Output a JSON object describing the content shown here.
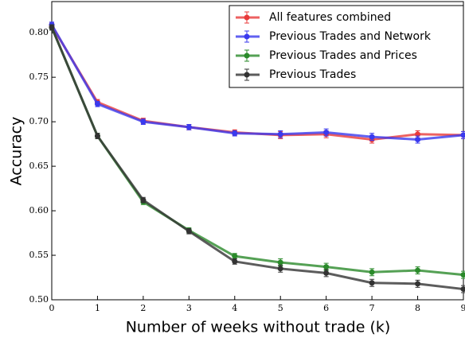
{
  "chart_data": {
    "type": "line",
    "xlabel": "Number of weeks without trade (k)",
    "ylabel": "Accuracy",
    "x": [
      0,
      1,
      2,
      3,
      4,
      5,
      6,
      7,
      8,
      9
    ],
    "xlim": [
      0,
      9
    ],
    "xticks": [
      0,
      1,
      2,
      3,
      4,
      5,
      6,
      7,
      8,
      9
    ],
    "ylim": [
      0.5,
      0.835
    ],
    "yticks": [
      {
        "value": 0.5,
        "label": "0.50"
      },
      0.55,
      {
        "value": 0.6,
        "label": "0.60"
      },
      0.65,
      {
        "value": 0.7,
        "label": "0.70"
      },
      0.75,
      {
        "value": 0.8,
        "label": "0.80"
      }
    ],
    "legend": "upper right",
    "series": [
      {
        "name": "All features combined",
        "color": "#e83a3a",
        "values": [
          0.808,
          0.722,
          0.701,
          0.694,
          0.688,
          0.685,
          0.686,
          0.68,
          0.686,
          0.685
        ],
        "errors": [
          0.003,
          0.003,
          0.003,
          0.003,
          0.003,
          0.004,
          0.004,
          0.004,
          0.004,
          0.004
        ]
      },
      {
        "name": "Previous Trades and Network",
        "color": "#3a3aee",
        "values": [
          0.809,
          0.72,
          0.7,
          0.694,
          0.687,
          0.686,
          0.688,
          0.683,
          0.68,
          0.685
        ],
        "errors": [
          0.003,
          0.003,
          0.003,
          0.003,
          0.003,
          0.004,
          0.004,
          0.004,
          0.004,
          0.004
        ]
      },
      {
        "name": "Previous Trades and Prices",
        "color": "#2a8a2a",
        "values": [
          0.806,
          0.684,
          0.61,
          0.578,
          0.549,
          0.542,
          0.537,
          0.531,
          0.533,
          0.528
        ],
        "errors": [
          0.003,
          0.003,
          0.003,
          0.003,
          0.003,
          0.004,
          0.004,
          0.004,
          0.004,
          0.004
        ]
      },
      {
        "name": "Previous Trades",
        "color": "#333333",
        "values": [
          0.806,
          0.684,
          0.612,
          0.577,
          0.543,
          0.535,
          0.53,
          0.519,
          0.518,
          0.512
        ],
        "errors": [
          0.003,
          0.003,
          0.003,
          0.003,
          0.003,
          0.004,
          0.004,
          0.004,
          0.004,
          0.004
        ]
      }
    ]
  }
}
